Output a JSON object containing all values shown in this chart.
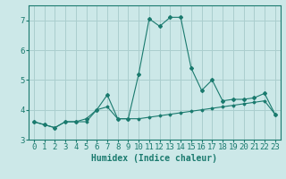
{
  "xlabel": "Humidex (Indice chaleur)",
  "background_color": "#cce8e8",
  "grid_color": "#aacece",
  "line_color": "#1a7a6e",
  "x_values": [
    0,
    1,
    2,
    3,
    4,
    5,
    6,
    7,
    8,
    9,
    10,
    11,
    12,
    13,
    14,
    15,
    16,
    17,
    18,
    19,
    20,
    21,
    22,
    23
  ],
  "series1": [
    3.6,
    3.5,
    3.4,
    3.6,
    3.6,
    3.6,
    4.0,
    4.1,
    3.7,
    3.7,
    3.7,
    3.75,
    3.8,
    3.85,
    3.9,
    3.95,
    4.0,
    4.05,
    4.1,
    4.15,
    4.2,
    4.25,
    4.3,
    3.85
  ],
  "series2": [
    3.6,
    3.5,
    3.4,
    3.6,
    3.6,
    3.7,
    4.0,
    4.5,
    3.7,
    3.7,
    5.2,
    7.05,
    6.8,
    7.1,
    7.1,
    5.4,
    4.65,
    5.0,
    4.3,
    4.35,
    4.35,
    4.4,
    4.55,
    3.85
  ],
  "ylim": [
    3.0,
    7.5
  ],
  "xlim": [
    -0.5,
    23.5
  ],
  "yticks": [
    3,
    4,
    5,
    6,
    7
  ],
  "xticks": [
    0,
    1,
    2,
    3,
    4,
    5,
    6,
    7,
    8,
    9,
    10,
    11,
    12,
    13,
    14,
    15,
    16,
    17,
    18,
    19,
    20,
    21,
    22,
    23
  ],
  "tick_fontsize": 6.5,
  "xlabel_fontsize": 7
}
